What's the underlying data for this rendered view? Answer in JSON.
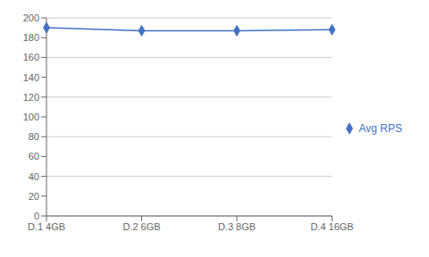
{
  "chart_data": {
    "type": "line",
    "categories": [
      "D.1 4GB",
      "D.2 6GB",
      "D.3 8GB",
      "D.4 16GB"
    ],
    "series": [
      {
        "name": "Avg RPS",
        "color": "#4472C4",
        "marker": "diamond",
        "values": [
          190,
          187,
          187,
          188
        ]
      }
    ],
    "ylim": [
      0,
      200
    ],
    "yticks": [
      0,
      20,
      40,
      60,
      80,
      100,
      120,
      140,
      160,
      180,
      200
    ],
    "grid": true,
    "legend": "right"
  }
}
